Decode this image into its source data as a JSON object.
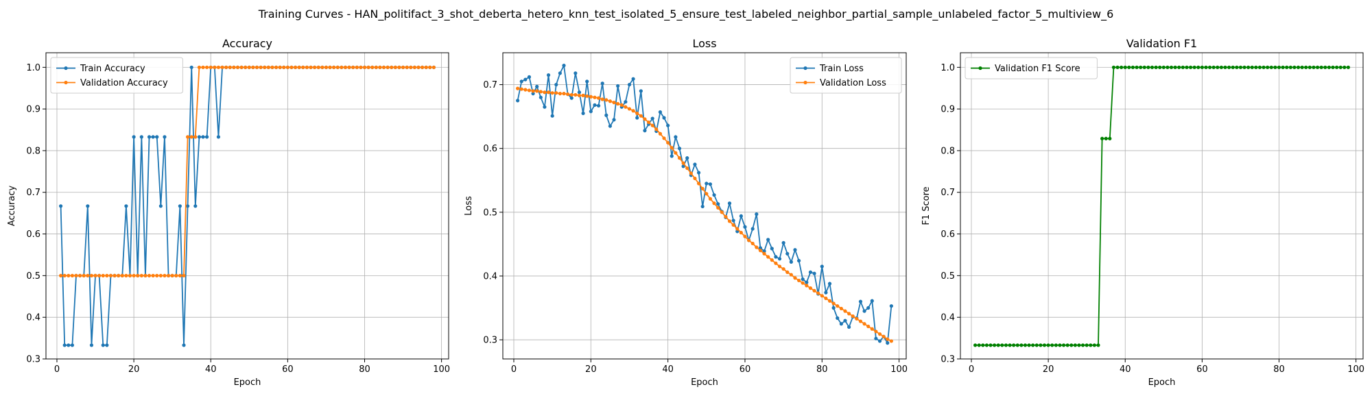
{
  "figure": {
    "title": "Training Curves - HAN_politifact_3_shot_deberta_hetero_knn_test_isolated_5_ensure_test_labeled_neighbor_partial_sample_unlabeled_factor_5_multiview_6"
  },
  "colors": {
    "train": "#1f77b4",
    "val": "#ff7f0e",
    "f1": "#008000",
    "grid": "#b0b0b0"
  },
  "chart_data": [
    {
      "type": "line",
      "title": "Accuracy",
      "xlabel": "Epoch",
      "ylabel": "Accuracy",
      "xlim": [
        -2.85,
        101.85
      ],
      "ylim": [
        0.3,
        1.035
      ],
      "xticks": [
        0,
        20,
        40,
        60,
        80,
        100
      ],
      "yticks": [
        0.3,
        0.4,
        0.5,
        0.6,
        0.7,
        0.8,
        0.9,
        1.0
      ],
      "ytick_labels": [
        "0.3",
        "0.4",
        "0.5",
        "0.6",
        "0.7",
        "0.8",
        "0.9",
        "1.0"
      ],
      "grid": true,
      "legend": "upper-left",
      "series": [
        {
          "name": "Train Accuracy",
          "color": "train",
          "x_start": 1,
          "values": [
            0.667,
            0.333,
            0.333,
            0.333,
            0.5,
            0.5,
            0.5,
            0.667,
            0.333,
            0.5,
            0.5,
            0.333,
            0.333,
            0.5,
            0.5,
            0.5,
            0.5,
            0.667,
            0.5,
            0.833,
            0.5,
            0.833,
            0.5,
            0.833,
            0.833,
            0.833,
            0.667,
            0.833,
            0.5,
            0.5,
            0.5,
            0.667,
            0.333,
            0.667,
            1.0,
            0.667,
            0.833,
            0.833,
            0.833,
            1.0,
            1.0,
            0.833,
            1.0,
            1.0,
            1.0,
            1.0,
            1.0,
            1.0,
            1.0,
            1.0,
            1.0,
            1.0,
            1.0,
            1.0,
            1.0,
            1.0,
            1.0,
            1.0,
            1.0,
            1.0,
            1.0,
            1.0,
            1.0,
            1.0,
            1.0,
            1.0,
            1.0,
            1.0,
            1.0,
            1.0,
            1.0,
            1.0,
            1.0,
            1.0,
            1.0,
            1.0,
            1.0,
            1.0,
            1.0,
            1.0,
            1.0,
            1.0,
            1.0,
            1.0,
            1.0,
            1.0,
            1.0,
            1.0,
            1.0,
            1.0,
            1.0,
            1.0,
            1.0,
            1.0,
            1.0,
            1.0,
            1.0,
            1.0
          ]
        },
        {
          "name": "Validation Accuracy",
          "color": "val",
          "x_start": 1,
          "values": [
            0.5,
            0.5,
            0.5,
            0.5,
            0.5,
            0.5,
            0.5,
            0.5,
            0.5,
            0.5,
            0.5,
            0.5,
            0.5,
            0.5,
            0.5,
            0.5,
            0.5,
            0.5,
            0.5,
            0.5,
            0.5,
            0.5,
            0.5,
            0.5,
            0.5,
            0.5,
            0.5,
            0.5,
            0.5,
            0.5,
            0.5,
            0.5,
            0.5,
            0.833,
            0.833,
            0.833,
            1.0,
            1.0,
            1.0,
            1.0,
            1.0,
            1.0,
            1.0,
            1.0,
            1.0,
            1.0,
            1.0,
            1.0,
            1.0,
            1.0,
            1.0,
            1.0,
            1.0,
            1.0,
            1.0,
            1.0,
            1.0,
            1.0,
            1.0,
            1.0,
            1.0,
            1.0,
            1.0,
            1.0,
            1.0,
            1.0,
            1.0,
            1.0,
            1.0,
            1.0,
            1.0,
            1.0,
            1.0,
            1.0,
            1.0,
            1.0,
            1.0,
            1.0,
            1.0,
            1.0,
            1.0,
            1.0,
            1.0,
            1.0,
            1.0,
            1.0,
            1.0,
            1.0,
            1.0,
            1.0,
            1.0,
            1.0,
            1.0,
            1.0,
            1.0,
            1.0,
            1.0,
            1.0
          ]
        }
      ]
    },
    {
      "type": "line",
      "title": "Loss",
      "xlabel": "Epoch",
      "ylabel": "Loss",
      "xlim": [
        -2.85,
        101.85
      ],
      "ylim": [
        0.27,
        0.75
      ],
      "xticks": [
        0,
        20,
        40,
        60,
        80,
        100
      ],
      "yticks": [
        0.3,
        0.4,
        0.5,
        0.6,
        0.7
      ],
      "ytick_labels": [
        "0.3",
        "0.4",
        "0.5",
        "0.6",
        "0.7"
      ],
      "grid": true,
      "legend": "upper-right",
      "series": [
        {
          "name": "Train Loss",
          "color": "train",
          "x_start": 1,
          "values": [
            0.675,
            0.705,
            0.708,
            0.712,
            0.686,
            0.697,
            0.68,
            0.665,
            0.715,
            0.651,
            0.7,
            0.718,
            0.73,
            0.685,
            0.679,
            0.718,
            0.688,
            0.655,
            0.705,
            0.658,
            0.668,
            0.667,
            0.702,
            0.652,
            0.635,
            0.645,
            0.698,
            0.665,
            0.673,
            0.7,
            0.709,
            0.648,
            0.69,
            0.628,
            0.638,
            0.647,
            0.627,
            0.657,
            0.648,
            0.636,
            0.588,
            0.618,
            0.6,
            0.572,
            0.585,
            0.558,
            0.575,
            0.562,
            0.509,
            0.545,
            0.544,
            0.527,
            0.513,
            0.501,
            0.492,
            0.514,
            0.487,
            0.47,
            0.494,
            0.477,
            0.456,
            0.474,
            0.497,
            0.444,
            0.439,
            0.457,
            0.443,
            0.43,
            0.427,
            0.452,
            0.435,
            0.422,
            0.441,
            0.424,
            0.395,
            0.39,
            0.406,
            0.404,
            0.372,
            0.415,
            0.374,
            0.388,
            0.35,
            0.334,
            0.325,
            0.33,
            0.32,
            0.336,
            0.334,
            0.36,
            0.345,
            0.35,
            0.361,
            0.302,
            0.298,
            0.305,
            0.295,
            0.353
          ]
        },
        {
          "name": "Validation Loss",
          "color": "val",
          "x_start": 1,
          "values": [
            0.694,
            0.693,
            0.692,
            0.691,
            0.69,
            0.69,
            0.689,
            0.688,
            0.688,
            0.687,
            0.687,
            0.686,
            0.686,
            0.685,
            0.684,
            0.684,
            0.683,
            0.683,
            0.682,
            0.681,
            0.68,
            0.679,
            0.677,
            0.676,
            0.674,
            0.672,
            0.67,
            0.668,
            0.665,
            0.662,
            0.659,
            0.655,
            0.651,
            0.646,
            0.641,
            0.636,
            0.63,
            0.623,
            0.616,
            0.609,
            0.601,
            0.593,
            0.585,
            0.577,
            0.569,
            0.561,
            0.553,
            0.545,
            0.537,
            0.529,
            0.521,
            0.514,
            0.507,
            0.5,
            0.493,
            0.486,
            0.48,
            0.474,
            0.468,
            0.462,
            0.456,
            0.451,
            0.445,
            0.44,
            0.435,
            0.43,
            0.425,
            0.42,
            0.415,
            0.411,
            0.406,
            0.402,
            0.397,
            0.393,
            0.389,
            0.385,
            0.381,
            0.377,
            0.373,
            0.369,
            0.365,
            0.361,
            0.357,
            0.353,
            0.349,
            0.345,
            0.341,
            0.337,
            0.333,
            0.329,
            0.325,
            0.321,
            0.317,
            0.313,
            0.309,
            0.305,
            0.301,
            0.298
          ]
        }
      ]
    },
    {
      "type": "line",
      "title": "Validation F1",
      "xlabel": "Epoch",
      "ylabel": "F1 Score",
      "xlim": [
        -2.85,
        101.85
      ],
      "ylim": [
        0.3,
        1.035
      ],
      "xticks": [
        0,
        20,
        40,
        60,
        80,
        100
      ],
      "yticks": [
        0.3,
        0.4,
        0.5,
        0.6,
        0.7,
        0.8,
        0.9,
        1.0
      ],
      "ytick_labels": [
        "0.3",
        "0.4",
        "0.5",
        "0.6",
        "0.7",
        "0.8",
        "0.9",
        "1.0"
      ],
      "grid": true,
      "legend": "upper-left",
      "series": [
        {
          "name": "Validation F1 Score",
          "color": "f1",
          "x_start": 1,
          "values": [
            0.333,
            0.333,
            0.333,
            0.333,
            0.333,
            0.333,
            0.333,
            0.333,
            0.333,
            0.333,
            0.333,
            0.333,
            0.333,
            0.333,
            0.333,
            0.333,
            0.333,
            0.333,
            0.333,
            0.333,
            0.333,
            0.333,
            0.333,
            0.333,
            0.333,
            0.333,
            0.333,
            0.333,
            0.333,
            0.333,
            0.333,
            0.333,
            0.333,
            0.829,
            0.829,
            0.829,
            1.0,
            1.0,
            1.0,
            1.0,
            1.0,
            1.0,
            1.0,
            1.0,
            1.0,
            1.0,
            1.0,
            1.0,
            1.0,
            1.0,
            1.0,
            1.0,
            1.0,
            1.0,
            1.0,
            1.0,
            1.0,
            1.0,
            1.0,
            1.0,
            1.0,
            1.0,
            1.0,
            1.0,
            1.0,
            1.0,
            1.0,
            1.0,
            1.0,
            1.0,
            1.0,
            1.0,
            1.0,
            1.0,
            1.0,
            1.0,
            1.0,
            1.0,
            1.0,
            1.0,
            1.0,
            1.0,
            1.0,
            1.0,
            1.0,
            1.0,
            1.0,
            1.0,
            1.0,
            1.0,
            1.0,
            1.0,
            1.0,
            1.0,
            1.0,
            1.0,
            1.0,
            1.0
          ]
        }
      ]
    }
  ]
}
